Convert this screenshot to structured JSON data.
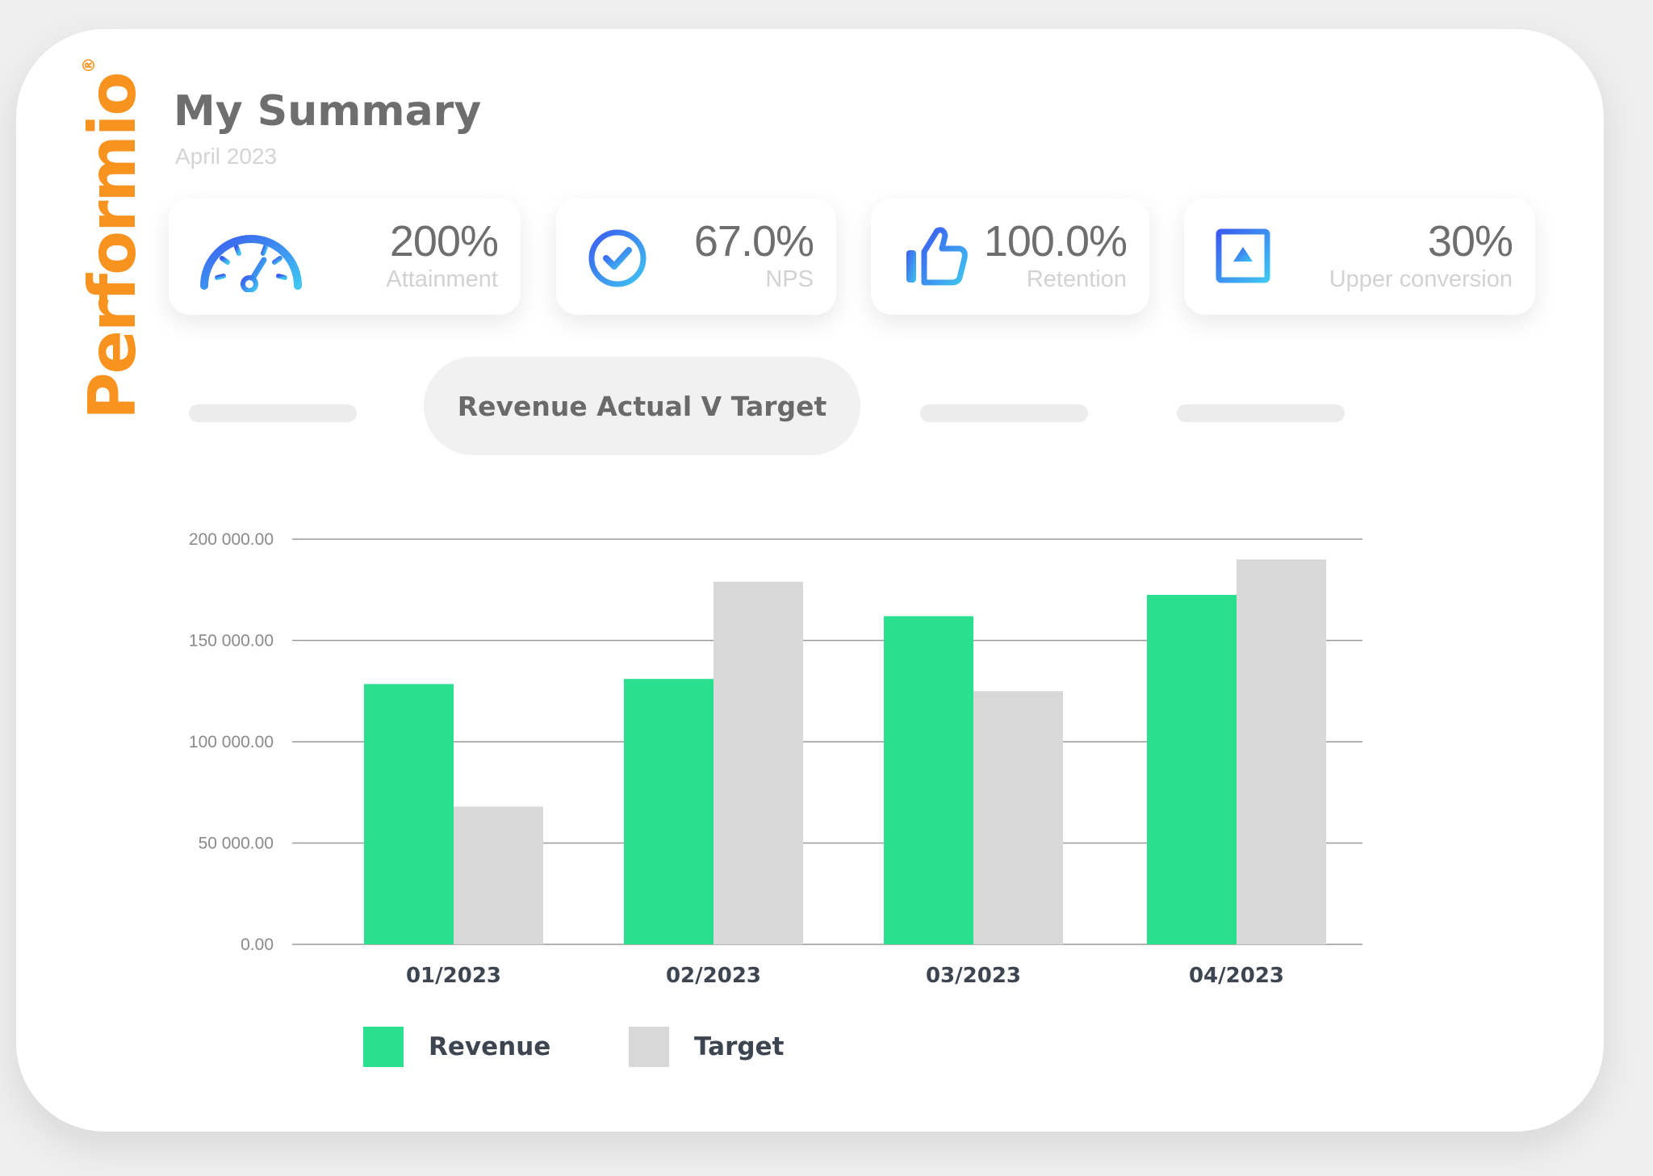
{
  "brand": {
    "name": "Performio",
    "registered": "®",
    "color": "#f7931e"
  },
  "header": {
    "title": "My Summary",
    "subtitle": "April 2023"
  },
  "kpis": [
    {
      "icon": "speedometer-icon",
      "value": "200%",
      "label": "Attainment"
    },
    {
      "icon": "check-circle-icon",
      "value": "67.0%",
      "label": "NPS"
    },
    {
      "icon": "thumbs-up-icon",
      "value": "100.0%",
      "label": "Retention"
    },
    {
      "icon": "up-arrow-box-icon",
      "value": "30%",
      "label": "Upper conversion"
    }
  ],
  "tabs": {
    "active_label": "Revenue Actual V Target"
  },
  "legend": {
    "revenue": "Revenue",
    "target": "Target"
  },
  "colors": {
    "revenue": "#2ae08f",
    "target": "#d8d8d8",
    "accent_gradient_start": "#3b5bf0",
    "accent_gradient_end": "#3fc5f0"
  },
  "chart_data": {
    "type": "bar",
    "categories": [
      "01/2023",
      "02/2023",
      "03/2023",
      "04/2023"
    ],
    "series": [
      {
        "name": "Revenue",
        "values": [
          128500,
          131000,
          162000,
          172500
        ]
      },
      {
        "name": "Target",
        "values": [
          68000,
          179000,
          125000,
          190000
        ]
      }
    ],
    "ylim": [
      0,
      200000
    ],
    "yticks": [
      "0.00",
      "50 000.00",
      "100 000.00",
      "150 000.00",
      "200 000.00"
    ],
    "grid": true,
    "legend_position": "bottom-left"
  }
}
